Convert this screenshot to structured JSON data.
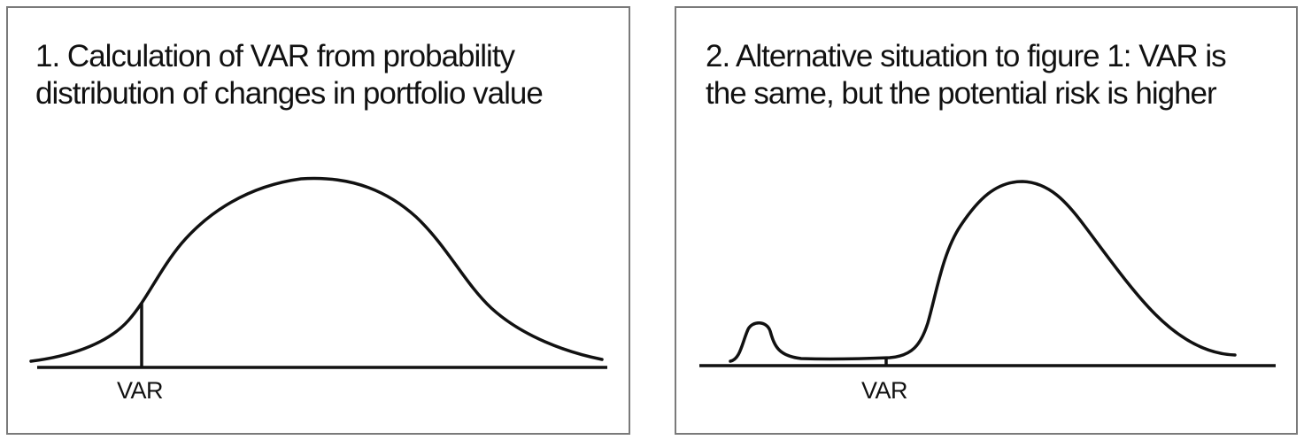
{
  "panels": [
    {
      "title_lines": [
        "1. Calculation of VAR from probability",
        "distribution of changes in portfolio value"
      ],
      "marker_label": "VAR"
    },
    {
      "title_lines": [
        "2. Alternative situation to figure 1: VAR is",
        "the same, but the potential risk is higher"
      ],
      "marker_label": "VAR"
    }
  ],
  "colors": {
    "line": "#111111",
    "frame": "#7a7a7a"
  }
}
